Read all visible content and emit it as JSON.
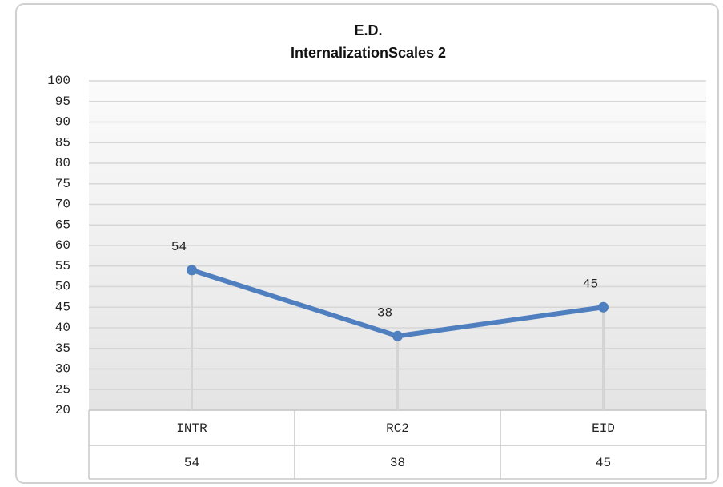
{
  "chart_data": {
    "type": "line",
    "title": "E.D.",
    "subtitle": "InternalizationScales 2",
    "categories": [
      "INTR",
      "RC2",
      "EID"
    ],
    "series": [
      {
        "name": "E.D.",
        "color": "#4f7fbe",
        "values": [
          54,
          38,
          45
        ]
      }
    ],
    "ylim": [
      20,
      100
    ],
    "yticks": [
      20,
      25,
      30,
      35,
      40,
      45,
      50,
      55,
      60,
      65,
      70,
      75,
      80,
      85,
      90,
      95,
      100
    ],
    "grid": true,
    "drop_lines": true,
    "data_table": true
  }
}
